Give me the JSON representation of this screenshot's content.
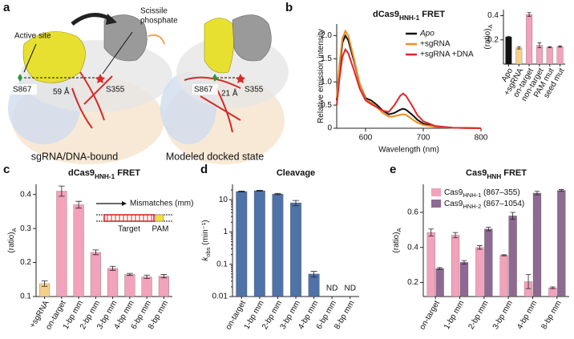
{
  "panel_labels": [
    "a",
    "b",
    "c",
    "d",
    "e"
  ],
  "panel_a": {
    "left": {
      "active_site": "Active site",
      "scissile": "Scissile",
      "scissile_2": "phosphate",
      "s867": "S867",
      "s355": "S355",
      "distance": "59 Å",
      "caption": "sgRNA/DNA-bound"
    },
    "right": {
      "s867": "S867",
      "s355": "S355",
      "distance": "21 Å",
      "caption": "Modeled docked state"
    }
  },
  "chart_data": [
    {
      "type": "line",
      "title": "dCas9",
      "title_sub": "HNH-1",
      "title_rest": " FRET",
      "xlabel": "Wavelength (nm)",
      "ylabel": "Relative emission intensity",
      "x": [
        550,
        555,
        560,
        565,
        570,
        580,
        590,
        600,
        610,
        620,
        630,
        640,
        650,
        660,
        665,
        670,
        680,
        690,
        700,
        720,
        750,
        800
      ],
      "series": [
        {
          "name": "Apo",
          "color": "#111111",
          "values": [
            0.6,
            1.3,
            1.85,
            2.0,
            1.9,
            1.45,
            0.95,
            0.65,
            0.6,
            0.5,
            0.38,
            0.3,
            0.33,
            0.4,
            0.42,
            0.4,
            0.3,
            0.18,
            0.1,
            0.04,
            0.01,
            0
          ]
        },
        {
          "name": "+sgRNA",
          "color": "#f08c1e",
          "values": [
            0.65,
            1.4,
            1.95,
            2.1,
            2.0,
            1.5,
            0.95,
            0.62,
            0.55,
            0.45,
            0.33,
            0.25,
            0.26,
            0.29,
            0.3,
            0.29,
            0.2,
            0.12,
            0.07,
            0.03,
            0.01,
            0
          ]
        },
        {
          "name": "+sgRNA +DNA",
          "color": "#e0262b",
          "values": [
            0.5,
            1.1,
            1.55,
            1.7,
            1.62,
            1.25,
            0.85,
            0.6,
            0.52,
            0.45,
            0.38,
            0.35,
            0.5,
            0.7,
            0.75,
            0.7,
            0.5,
            0.28,
            0.15,
            0.05,
            0.01,
            0
          ]
        }
      ],
      "xlim": [
        550,
        800
      ],
      "xticks": [
        600,
        700,
        800
      ],
      "ylim": [
        0,
        2.25
      ],
      "yticks": [
        0,
        0.5,
        {
          "value": 1,
          "label": "1.0"
        },
        1.5,
        {
          "value": 2,
          "label": "2.0"
        }
      ]
    },
    {
      "type": "bar",
      "ylabel": "(ratio)",
      "ylabel_sub": "A",
      "categories": [
        "Apo",
        "+sgRNA",
        "on-target",
        "non-target",
        "PAM mut",
        "seed mut"
      ],
      "values": [
        0.225,
        0.135,
        0.41,
        0.155,
        0.14,
        0.145
      ],
      "errors": [
        0.005,
        0.01,
        0.015,
        0.02,
        0.005,
        0.005
      ],
      "colors": [
        "#111111",
        "#f5d08a",
        "#f2a2bb",
        "#f2a2bb",
        "#f2a2bb",
        "#f2a2bb"
      ],
      "ylim": [
        0,
        0.45
      ],
      "yticks": [
        0.2,
        0.4
      ]
    },
    {
      "type": "bar",
      "title": "dCas9",
      "title_sub": "HNH-1",
      "title_rest": " FRET",
      "ylabel": "(ratio)",
      "ylabel_sub": "A",
      "categories": [
        "+sgRNA",
        "on-target",
        "1-bp mm",
        "2-bp mm",
        "3-bp mm",
        "4-bp mm",
        "6-bp mm",
        "8-bp mm"
      ],
      "values": [
        0.138,
        0.41,
        0.37,
        0.23,
        0.183,
        0.165,
        0.158,
        0.16
      ],
      "errors": [
        0.008,
        0.015,
        0.01,
        0.007,
        0.006,
        0.003,
        0.005,
        0.005
      ],
      "colors": [
        "#f5d08a",
        "#f2a2bb",
        "#f2a2bb",
        "#f2a2bb",
        "#f2a2bb",
        "#f2a2bb",
        "#f2a2bb",
        "#f2a2bb"
      ],
      "ylim": [
        0.1,
        0.43
      ],
      "yticks": [
        0.1,
        0.2,
        0.3,
        0.4
      ],
      "annotations": [
        "Mismatches (mm)",
        "Target",
        "PAM"
      ]
    },
    {
      "type": "bar",
      "title": "Cleavage",
      "ylabel": "k",
      "ylabel_sub": "obs",
      "ylabel_rest": " (min⁻¹)",
      "categories": [
        "on-target",
        "1-bp mm",
        "2-bp mm",
        "3-bp mm",
        "4-bp mm",
        "6-bp mm",
        "8-bp mm"
      ],
      "values": [
        18,
        19,
        15,
        8,
        0.05,
        null,
        null
      ],
      "value_labels": [
        null,
        null,
        null,
        null,
        null,
        "ND",
        "ND"
      ],
      "errors": [
        0.5,
        0.6,
        0.7,
        1.5,
        0.01,
        null,
        null
      ],
      "color": "#4f72a8",
      "log": true,
      "ylim": [
        0.01,
        30
      ],
      "yticks": [
        0.01,
        0.1,
        1,
        10
      ]
    },
    {
      "type": "bar",
      "title": "Cas9",
      "title_sub": "HNH",
      "title_rest": " FRET",
      "ylabel": "(ratio)",
      "ylabel_sub": "A",
      "categories": [
        "on-target",
        "1-bp mm",
        "2-bp mm",
        "3-bp mm",
        "4-bp mm",
        "8-bp mm"
      ],
      "series": [
        {
          "name": "Cas9",
          "name_sub": "HNH-1",
          "name_rest": " (867–355)",
          "color": "#f2a2bb",
          "values": [
            0.485,
            0.47,
            0.4,
            0.355,
            0.205,
            0.17
          ],
          "errors": [
            0.02,
            0.015,
            0.01,
            0.003,
            0.04,
            0.005
          ]
        },
        {
          "name": "Cas9",
          "name_sub": "HNH-2",
          "name_rest": " (867–1054)",
          "color": "#8e6a92",
          "values": [
            0.28,
            0.315,
            0.505,
            0.58,
            0.71,
            0.725
          ],
          "errors": [
            0.005,
            0.01,
            0.01,
            0.02,
            0.01,
            0.005
          ]
        }
      ],
      "ylim": [
        0.12,
        0.76
      ],
      "yticks": [
        0.2,
        0.4,
        0.6
      ],
      "legend": "upper left"
    }
  ]
}
